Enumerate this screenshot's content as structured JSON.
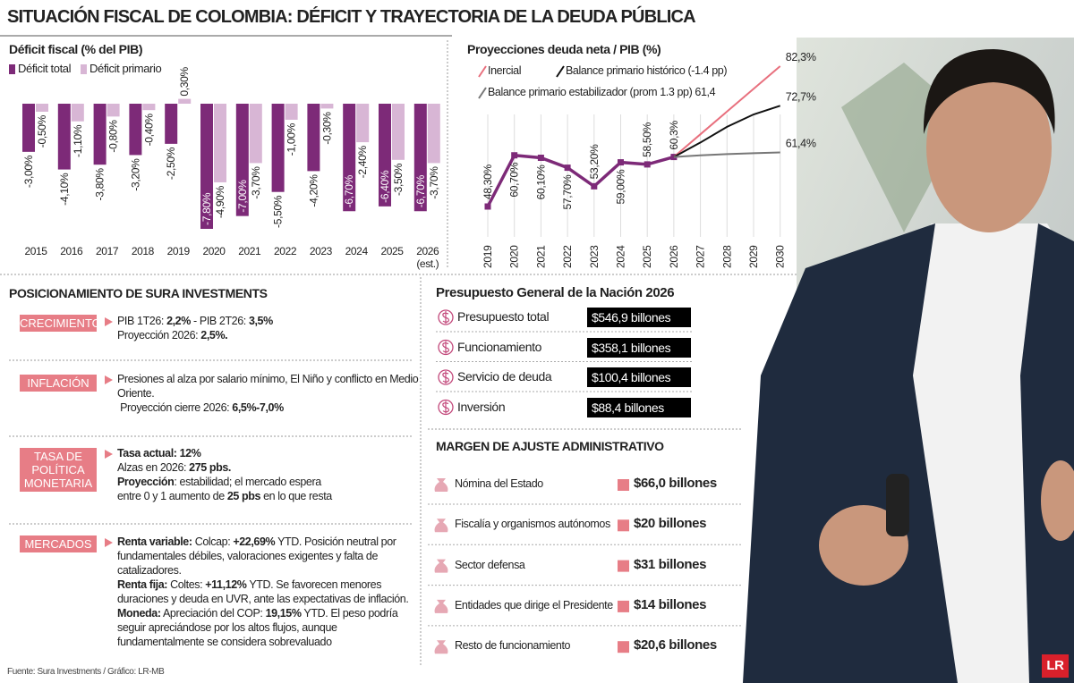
{
  "title": "SITUACIÓN FISCAL DE COLOMBIA: DÉFICIT Y TRAYECTORIA DE LA DEUDA PÚBLICA",
  "chart_data": [
    {
      "type": "bar",
      "title": "Déficit fiscal (% del PIB)",
      "categories": [
        "2015",
        "2016",
        "2017",
        "2018",
        "2019",
        "2020",
        "2021",
        "2022",
        "2023",
        "2024",
        "2025",
        "2026 (est.)"
      ],
      "series": [
        {
          "name": "Déficit total",
          "color": "#7d2a78",
          "values": [
            -3.0,
            -4.1,
            -3.8,
            -3.2,
            -2.5,
            -7.8,
            -7.0,
            -5.5,
            -4.2,
            -6.7,
            -6.4,
            -6.7
          ],
          "value_labels": [
            "-3,00%",
            "-4,10%",
            "-3,80%",
            "-3,20%",
            "-2,50%",
            "-7,80%",
            "-7,00%",
            "-5,50%",
            "-4,20%",
            "-6,70%",
            "-6,40%",
            "-6,70%"
          ]
        },
        {
          "name": "Déficit primario",
          "color": "#d8b6d5",
          "values": [
            -0.5,
            -1.1,
            -0.8,
            -0.4,
            0.3,
            -4.9,
            -3.7,
            -1.0,
            -0.3,
            -2.4,
            -3.5,
            -3.7
          ],
          "value_labels": [
            "-0,50%",
            "-1,10%",
            "-0,80%",
            "-0,40%",
            "0,30%",
            "-4,90%",
            "-3,70%",
            "-1,00%",
            "-0,30%",
            "-2,40%",
            "-3,50%",
            "-3,70%"
          ]
        }
      ]
    },
    {
      "type": "line",
      "title": "Proyecciones deuda neta / PIB (%)",
      "categories": [
        "2019",
        "2020",
        "2021",
        "2022",
        "2023",
        "2024",
        "2025",
        "2026",
        "2027",
        "2028",
        "2029",
        "2030"
      ],
      "series": [
        {
          "color": "#7d2a78",
          "values": [
            48.3,
            60.7,
            60.1,
            57.7,
            53.2,
            59.0,
            58.5,
            60.3,
            null,
            null,
            null,
            null
          ],
          "value_labels": [
            "48,30%",
            "60,70%",
            "60,10%",
            "57,70%",
            "53,20%",
            "59,00%",
            "58,50%",
            "60,3%",
            null,
            null,
            null,
            null
          ]
        },
        {
          "name": "Inercial",
          "color": "#e8707e",
          "values": [
            null,
            null,
            null,
            null,
            null,
            null,
            null,
            60.3,
            65.8,
            71.3,
            76.8,
            82.3
          ],
          "value_labels": [
            null,
            null,
            null,
            null,
            null,
            null,
            null,
            null,
            null,
            null,
            null,
            "82,3%"
          ]
        },
        {
          "name": "Balance primario histórico (-1.4 pp)",
          "color": "#111111",
          "values": [
            null,
            null,
            null,
            null,
            null,
            null,
            null,
            60.3,
            63.8,
            67.6,
            70.6,
            72.7
          ],
          "value_labels": [
            null,
            null,
            null,
            null,
            null,
            null,
            null,
            null,
            null,
            null,
            null,
            "72,7%"
          ]
        },
        {
          "name": "Balance primario estabilizador (prom 1.3 pp) 61,4",
          "color": "#777777",
          "values": [
            null,
            null,
            null,
            null,
            null,
            null,
            null,
            60.3,
            60.7,
            61.0,
            61.2,
            61.4
          ],
          "value_labels": [
            null,
            null,
            null,
            null,
            null,
            null,
            null,
            null,
            null,
            null,
            null,
            "61,4%"
          ]
        }
      ]
    }
  ],
  "positioning": {
    "title": "POSICIONAMIENTO DE SURA INVESTMENTS",
    "rows": [
      {
        "tag": [
          "CRECIMIENTO"
        ],
        "lines": [
          [
            "PIB 1T26: ",
            {
              "text": "2,2%"
            },
            " - PIB 2T26: ",
            {
              "text": "3,5%"
            }
          ],
          [
            "Proyección 2026: ",
            {
              "text": "2,5%."
            }
          ]
        ]
      },
      {
        "tag": [
          "INFLACIÓN"
        ],
        "lines": [
          [
            "Presiones al alza por salario mínimo, El Niño y conflicto en Medio"
          ],
          [
            "Oriente."
          ],
          [
            " Proyección cierre 2026: ",
            {
              "text": "6,5%-7,0%"
            }
          ]
        ]
      },
      {
        "tag": [
          "TASA DE",
          "POLÍTICA",
          "MONETARIA"
        ],
        "lines": [
          [
            {
              "text": "Tasa actual: 12%"
            }
          ],
          [
            "Alzas en 2026: ",
            {
              "text": "275 pbs."
            }
          ],
          [
            {
              "text": "Proyección"
            },
            ": estabilidad; el mercado espera"
          ],
          [
            "entre 0 y 1 aumento de ",
            {
              "text": "25 pbs"
            },
            " en lo que resta"
          ]
        ]
      },
      {
        "tag": [
          "MERCADOS"
        ],
        "lines": [
          [
            {
              "text": "Renta variable:"
            },
            " Colcap: ",
            {
              "text": "+22,69%"
            },
            " YTD. Posición neutral por"
          ],
          [
            "fundamentales débiles, valoraciones exigentes y falta de"
          ],
          [
            "catalizadores."
          ],
          [
            {
              "text": "Renta fija:"
            },
            " Coltes: ",
            {
              "text": "+11,12%"
            },
            " YTD. Se favorecen menores"
          ],
          [
            "duraciones y deuda en UVR, ante las expectativas de inflación."
          ],
          [
            {
              "text": "Moneda:"
            },
            " Apreciación del COP: ",
            {
              "text": "19,15%"
            },
            " YTD. El peso podría"
          ],
          [
            "seguir apreciándose por los altos flujos, aunque"
          ],
          [
            "fundamentalmente se considera sobrevaluado"
          ]
        ]
      }
    ]
  },
  "budget": {
    "title": "Presupuesto General de la Nación 2026",
    "items": [
      {
        "label": "Presupuesto total",
        "value": "$546,9 billones"
      },
      {
        "label": "Funcionamiento",
        "value": "$358,1 billones"
      },
      {
        "label": "Servicio de deuda",
        "value": "$100,4 billones"
      },
      {
        "label": "Inversión",
        "value": "$88,4 billones"
      }
    ]
  },
  "margin": {
    "title": "MARGEN DE AJUSTE ADMINISTRATIVO",
    "items": [
      {
        "label": "Nómina del Estado",
        "value": "$66,0 billones"
      },
      {
        "label": "Fiscalía y organismos autónomos",
        "value": "$20 billones"
      },
      {
        "label": "Sector defensa",
        "value": "$31 billones"
      },
      {
        "label": "Entidades que dirige el Presidente",
        "value": "$14 billones"
      },
      {
        "label": "Resto de funcionamiento",
        "value": "$20,6 billones"
      }
    ]
  },
  "source": "Fuente: Sura Investments / Gráfico: LR-MB",
  "logo": "LR"
}
